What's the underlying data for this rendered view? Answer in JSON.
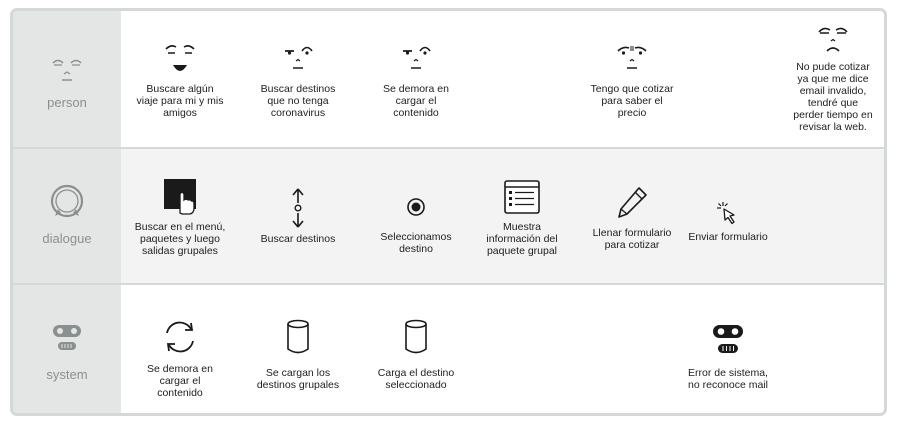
{
  "rows": {
    "person": {
      "label": "person",
      "cells": [
        {
          "text": "Buscare algún\nviaje para mi y mis\namigos",
          "icon": "happy-face-icon"
        },
        {
          "text": "Buscar destinos\nque no tenga\ncoronavirus",
          "icon": "skeptical-face-icon"
        },
        {
          "text": "Se demora en\ncargar el\ncontenido",
          "icon": "skeptical-face-icon"
        },
        {
          "text": "Tengo que cotizar\npara saber el\nprecio",
          "icon": "frowning-face-icon"
        },
        {
          "text": "No pude cotizar\nya que me dice\nemail invalido,\ntendré que\nperder tiempo en\nrevisar la web.",
          "icon": "sad-face-icon"
        }
      ]
    },
    "dialogue": {
      "label": "dialogue",
      "cells": [
        {
          "text": "Buscar en el menú,\npaquetes y luego\nsalidas grupales",
          "icon": "touch-screen-icon"
        },
        {
          "text": "Buscar destinos",
          "icon": "scroll-arrows-icon"
        },
        {
          "text": "Seleccionamos\ndestino",
          "icon": "radio-select-icon"
        },
        {
          "text": "Muestra\ninformación del\npaquete grupal",
          "icon": "browser-window-icon"
        },
        {
          "text": "Llenar formulario\npara cotizar",
          "icon": "pencil-icon"
        },
        {
          "text": "Enviar formulario",
          "icon": "click-cursor-icon"
        }
      ]
    },
    "system": {
      "label": "system",
      "cells": [
        {
          "text": "Se demora en\ncargar el\ncontenido",
          "icon": "refresh-icon"
        },
        {
          "text": "Se cargan los\ndestinos grupales",
          "icon": "database-icon"
        },
        {
          "text": "Carga el destino\nseleccionado",
          "icon": "database-icon"
        },
        {
          "text": "Error de sistema,\nno reconoce mail",
          "icon": "robot-face-icon"
        }
      ]
    }
  },
  "colors": {
    "frame": "#d4d8d8",
    "label_column": "#e4e6e6",
    "label_text": "#8a8f8f",
    "icon": "#1a1a1a"
  }
}
